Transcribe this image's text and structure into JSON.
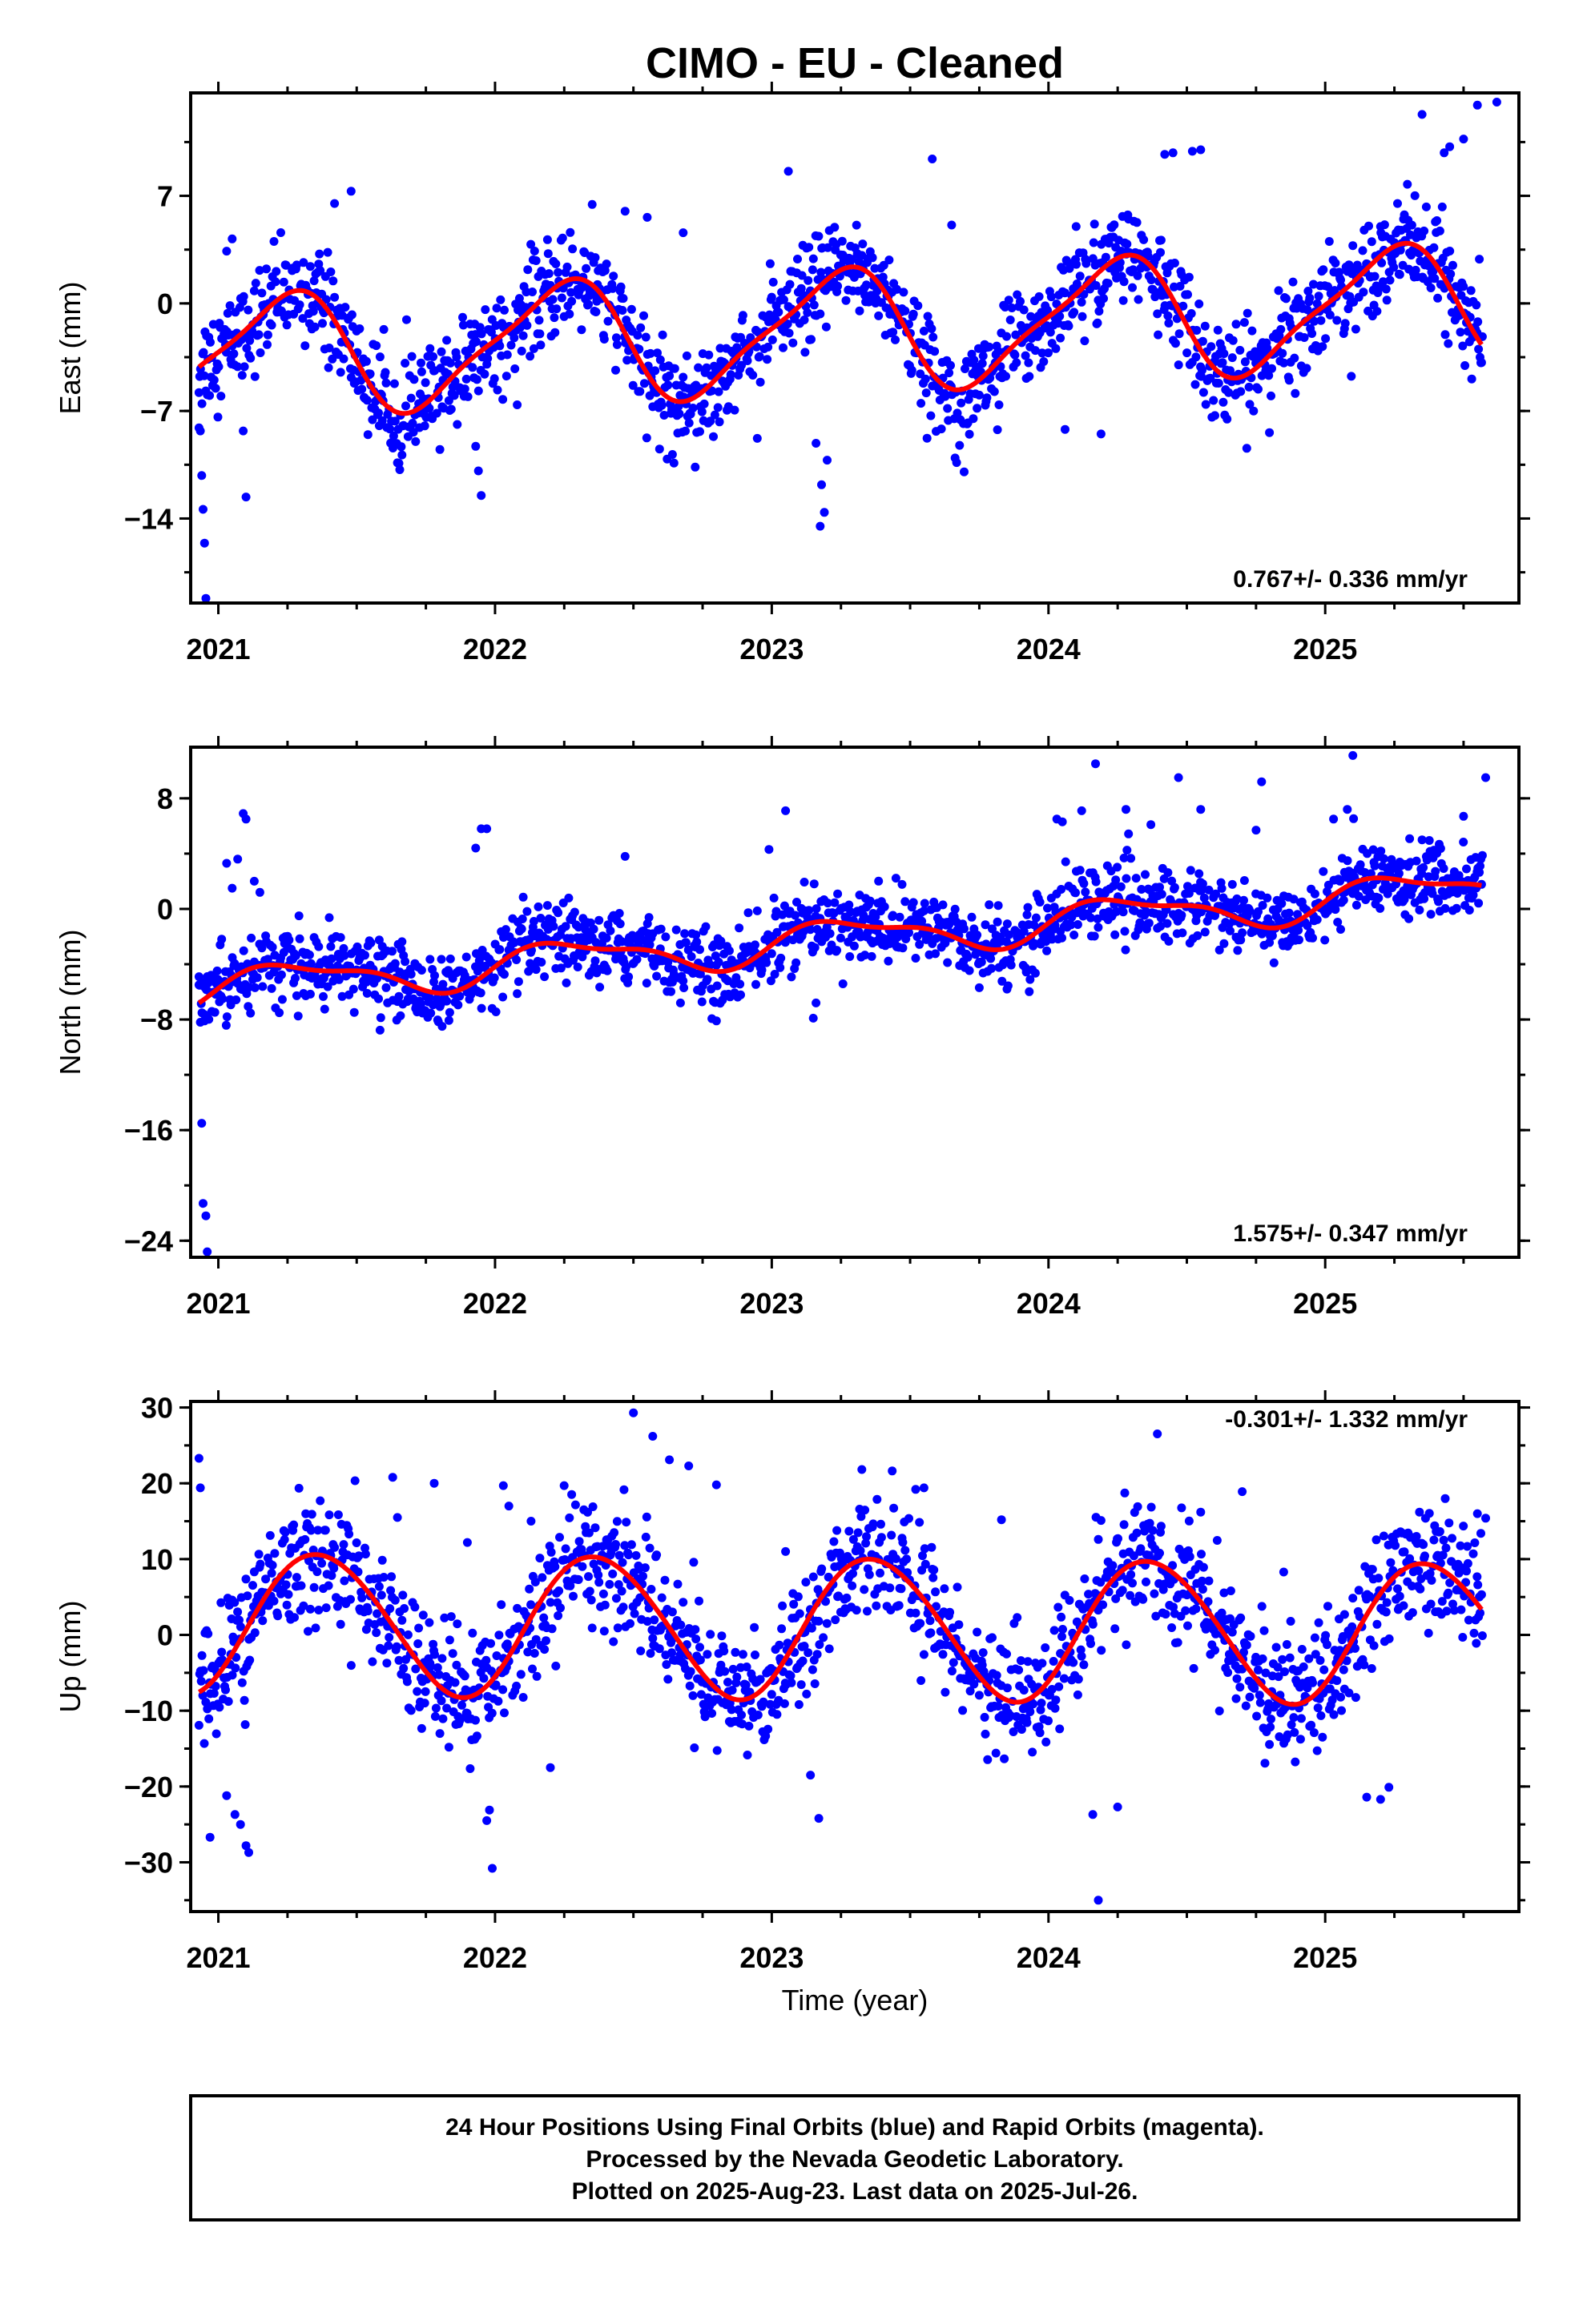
{
  "title": "CIMO  - EU - Cleaned",
  "chart_data": [
    {
      "type": "scatter",
      "component": "East",
      "ylabel": "East (mm)",
      "xlim": [
        2020.9,
        2025.7
      ],
      "ylim": [
        -19.5,
        13.7
      ],
      "yticks": [
        7,
        0,
        -7,
        -14
      ],
      "ytick_labels": [
        "7",
        "0",
        "−7",
        "−14"
      ],
      "xticks": [
        2021,
        2022,
        2023,
        2024,
        2025
      ],
      "xtick_labels": [
        "2021",
        "2022",
        "2023",
        "2024",
        "2025"
      ],
      "rate_label": "0.767+/- 0.336 mm/yr",
      "rate_position": "bottom-right",
      "model": {
        "offset": -1.8,
        "trend": 0.767,
        "a1": 3.8,
        "p1": 2021.23,
        "a2": 0.9,
        "p2": 2021.36
      },
      "noise": 1.6,
      "series": [
        {
          "name": "Final Orbits",
          "color": "#0000ff",
          "kind": "points"
        },
        {
          "name": "Model",
          "color": "#ff0000",
          "kind": "line"
        }
      ],
      "outliers": [
        [
          2020.93,
          -8.1
        ],
        [
          2020.935,
          -8.3
        ],
        [
          2020.94,
          -11.2
        ],
        [
          2020.945,
          -13.4
        ],
        [
          2020.95,
          -15.6
        ],
        [
          2020.955,
          -19.2
        ],
        [
          2021.05,
          4.2
        ],
        [
          2021.03,
          3.4
        ],
        [
          2021.1,
          -12.6
        ],
        [
          2021.09,
          -8.3
        ],
        [
          2021.42,
          6.5
        ],
        [
          2021.48,
          7.3
        ],
        [
          2021.95,
          -12.5
        ],
        [
          2021.94,
          -10.9
        ],
        [
          2021.93,
          -9.3
        ],
        [
          2022.18,
          1.0
        ],
        [
          2022.47,
          6.0
        ],
        [
          2022.55,
          5.6
        ],
        [
          2022.68,
          4.6
        ],
        [
          2023.06,
          8.6
        ],
        [
          2023.18,
          -11.8
        ],
        [
          2023.19,
          -13.6
        ],
        [
          2023.175,
          -14.5
        ],
        [
          2023.2,
          -10.2
        ],
        [
          2023.16,
          -9.1
        ],
        [
          2023.58,
          9.4
        ],
        [
          2023.65,
          5.1
        ],
        [
          2024.06,
          -8.2
        ],
        [
          2024.19,
          -8.5
        ],
        [
          2024.1,
          5.0
        ],
        [
          2024.42,
          9.7
        ],
        [
          2024.52,
          9.9
        ],
        [
          2024.55,
          10.0
        ],
        [
          2024.45,
          9.8
        ],
        [
          2024.87,
          -5.0
        ],
        [
          2025.2,
          5.0
        ],
        [
          2025.35,
          12.3
        ],
        [
          2025.5,
          10.7
        ],
        [
          2025.45,
          10.2
        ],
        [
          2025.55,
          12.9
        ],
        [
          2025.62,
          13.1
        ],
        [
          2025.43,
          9.8
        ]
      ]
    },
    {
      "type": "scatter",
      "component": "North",
      "ylabel": "North (mm)",
      "xlim": [
        2020.9,
        2025.7
      ],
      "ylim": [
        -25.2,
        11.7
      ],
      "yticks": [
        8,
        0,
        -8,
        -16,
        -24
      ],
      "ytick_labels": [
        "8",
        "0",
        "−8",
        "−16",
        "−24"
      ],
      "xticks": [
        2021,
        2022,
        2023,
        2024,
        2025
      ],
      "xtick_labels": [
        "2021",
        "2022",
        "2023",
        "2024",
        "2025"
      ],
      "rate_label": "1.575+/- 0.347 mm/yr",
      "rate_position": "bottom-right",
      "model": {
        "offset": -2.2,
        "trend": 1.575,
        "a1": 1.3,
        "p1": 2021.28,
        "a2": 0.5,
        "p2": 2021.1
      },
      "noise": 1.3,
      "series": [
        {
          "name": "Final Orbits",
          "color": "#0000ff",
          "kind": "points"
        },
        {
          "name": "Model",
          "color": "#ff0000",
          "kind": "line"
        }
      ],
      "outliers": [
        [
          2020.93,
          -5.5
        ],
        [
          2020.935,
          -8.2
        ],
        [
          2020.95,
          -8.1
        ],
        [
          2020.94,
          -15.5
        ],
        [
          2020.945,
          -21.3
        ],
        [
          2020.955,
          -22.2
        ],
        [
          2020.96,
          -24.8
        ],
        [
          2021.03,
          3.3
        ],
        [
          2021.05,
          1.5
        ],
        [
          2021.07,
          3.6
        ],
        [
          2021.09,
          6.9
        ],
        [
          2021.1,
          6.5
        ],
        [
          2021.13,
          2.0
        ],
        [
          2021.15,
          1.2
        ],
        [
          2021.95,
          5.8
        ],
        [
          2021.97,
          5.8
        ],
        [
          2021.93,
          4.4
        ],
        [
          2022.47,
          3.8
        ],
        [
          2022.67,
          -6.8
        ],
        [
          2022.8,
          -8.1
        ],
        [
          2022.99,
          4.3
        ],
        [
          2023.05,
          7.1
        ],
        [
          2023.15,
          -7.9
        ],
        [
          2023.16,
          -6.8
        ],
        [
          2023.75,
          -5.7
        ],
        [
          2023.85,
          -5.8
        ],
        [
          2024.03,
          6.5
        ],
        [
          2024.05,
          6.3
        ],
        [
          2024.12,
          7.1
        ],
        [
          2024.17,
          10.5
        ],
        [
          2024.28,
          7.2
        ],
        [
          2024.37,
          6.1
        ],
        [
          2024.47,
          9.5
        ],
        [
          2024.55,
          7.2
        ],
        [
          2024.77,
          9.2
        ],
        [
          2024.75,
          5.7
        ],
        [
          2025.03,
          6.5
        ],
        [
          2025.08,
          7.2
        ],
        [
          2025.1,
          11.1
        ],
        [
          2025.35,
          5.0
        ],
        [
          2025.58,
          9.5
        ],
        [
          2025.5,
          6.7
        ]
      ]
    },
    {
      "type": "scatter",
      "component": "Up",
      "ylabel": "Up (mm)",
      "xlim": [
        2020.9,
        2025.7
      ],
      "ylim": [
        -36.5,
        30.8
      ],
      "yticks": [
        30,
        20,
        10,
        0,
        -10,
        -20,
        -30
      ],
      "ytick_labels": [
        "30",
        "20",
        "10",
        "0",
        "−10",
        "−20",
        "−30"
      ],
      "xticks": [
        2021,
        2022,
        2023,
        2024,
        2025
      ],
      "xtick_labels": [
        "2021",
        "2022",
        "2023",
        "2024",
        "2025"
      ],
      "rate_label": "-0.301+/- 1.332 mm/yr",
      "rate_position": "top-right",
      "model": {
        "offset": 1.0,
        "trend": -0.301,
        "a1": 9.3,
        "p1": 2021.37,
        "a2": 0.6,
        "p2": 2021.2
      },
      "noise": 4.0,
      "series": [
        {
          "name": "Final Orbits",
          "color": "#0000ff",
          "kind": "points"
        },
        {
          "name": "Model",
          "color": "#ff0000",
          "kind": "line"
        }
      ],
      "outliers": [
        [
          2020.93,
          23.3
        ],
        [
          2020.935,
          19.4
        ],
        [
          2020.97,
          -26.7
        ],
        [
          2021.03,
          -21.2
        ],
        [
          2021.06,
          -23.7
        ],
        [
          2021.08,
          -25.0
        ],
        [
          2021.1,
          -27.8
        ],
        [
          2021.11,
          -28.7
        ],
        [
          2021.05,
          4.6
        ],
        [
          2021.63,
          20.8
        ],
        [
          2021.78,
          20.0
        ],
        [
          2021.9,
          12.2
        ],
        [
          2021.97,
          -24.5
        ],
        [
          2021.98,
          -23.1
        ],
        [
          2021.99,
          -30.8
        ],
        [
          2022.03,
          19.7
        ],
        [
          2022.05,
          17.0
        ],
        [
          2022.13,
          15.0
        ],
        [
          2022.2,
          -17.5
        ],
        [
          2022.5,
          29.3
        ],
        [
          2022.57,
          26.2
        ],
        [
          2022.63,
          23.1
        ],
        [
          2022.7,
          22.3
        ],
        [
          2022.8,
          19.8
        ],
        [
          2023.05,
          11.0
        ],
        [
          2023.17,
          -24.2
        ],
        [
          2023.14,
          -18.5
        ],
        [
          2023.52,
          19.2
        ],
        [
          2023.55,
          19.4
        ],
        [
          2023.83,
          15.2
        ],
        [
          2024.16,
          -23.7
        ],
        [
          2024.19,
          15.1
        ],
        [
          2024.18,
          12.6
        ],
        [
          2024.18,
          -35.0
        ],
        [
          2024.25,
          -22.7
        ],
        [
          2024.55,
          16.2
        ],
        [
          2024.7,
          18.9
        ],
        [
          2024.85,
          8.3
        ],
        [
          2025.07,
          2.7
        ],
        [
          2025.05,
          2.1
        ],
        [
          2025.2,
          -21.7
        ],
        [
          2025.15,
          -21.4
        ],
        [
          2025.23,
          -20.1
        ],
        [
          2025.55,
          16.0
        ],
        [
          2025.58,
          15.4
        ]
      ]
    }
  ],
  "xlabel": "Time (year)",
  "footer": {
    "line1": "24 Hour Positions Using Final Orbits (blue) and Rapid Orbits (magenta).",
    "line2": "Processed by the Nevada Geodetic Laboratory.",
    "line3": "Plotted on 2025-Aug-23. Last data on 2025-Jul-26."
  }
}
